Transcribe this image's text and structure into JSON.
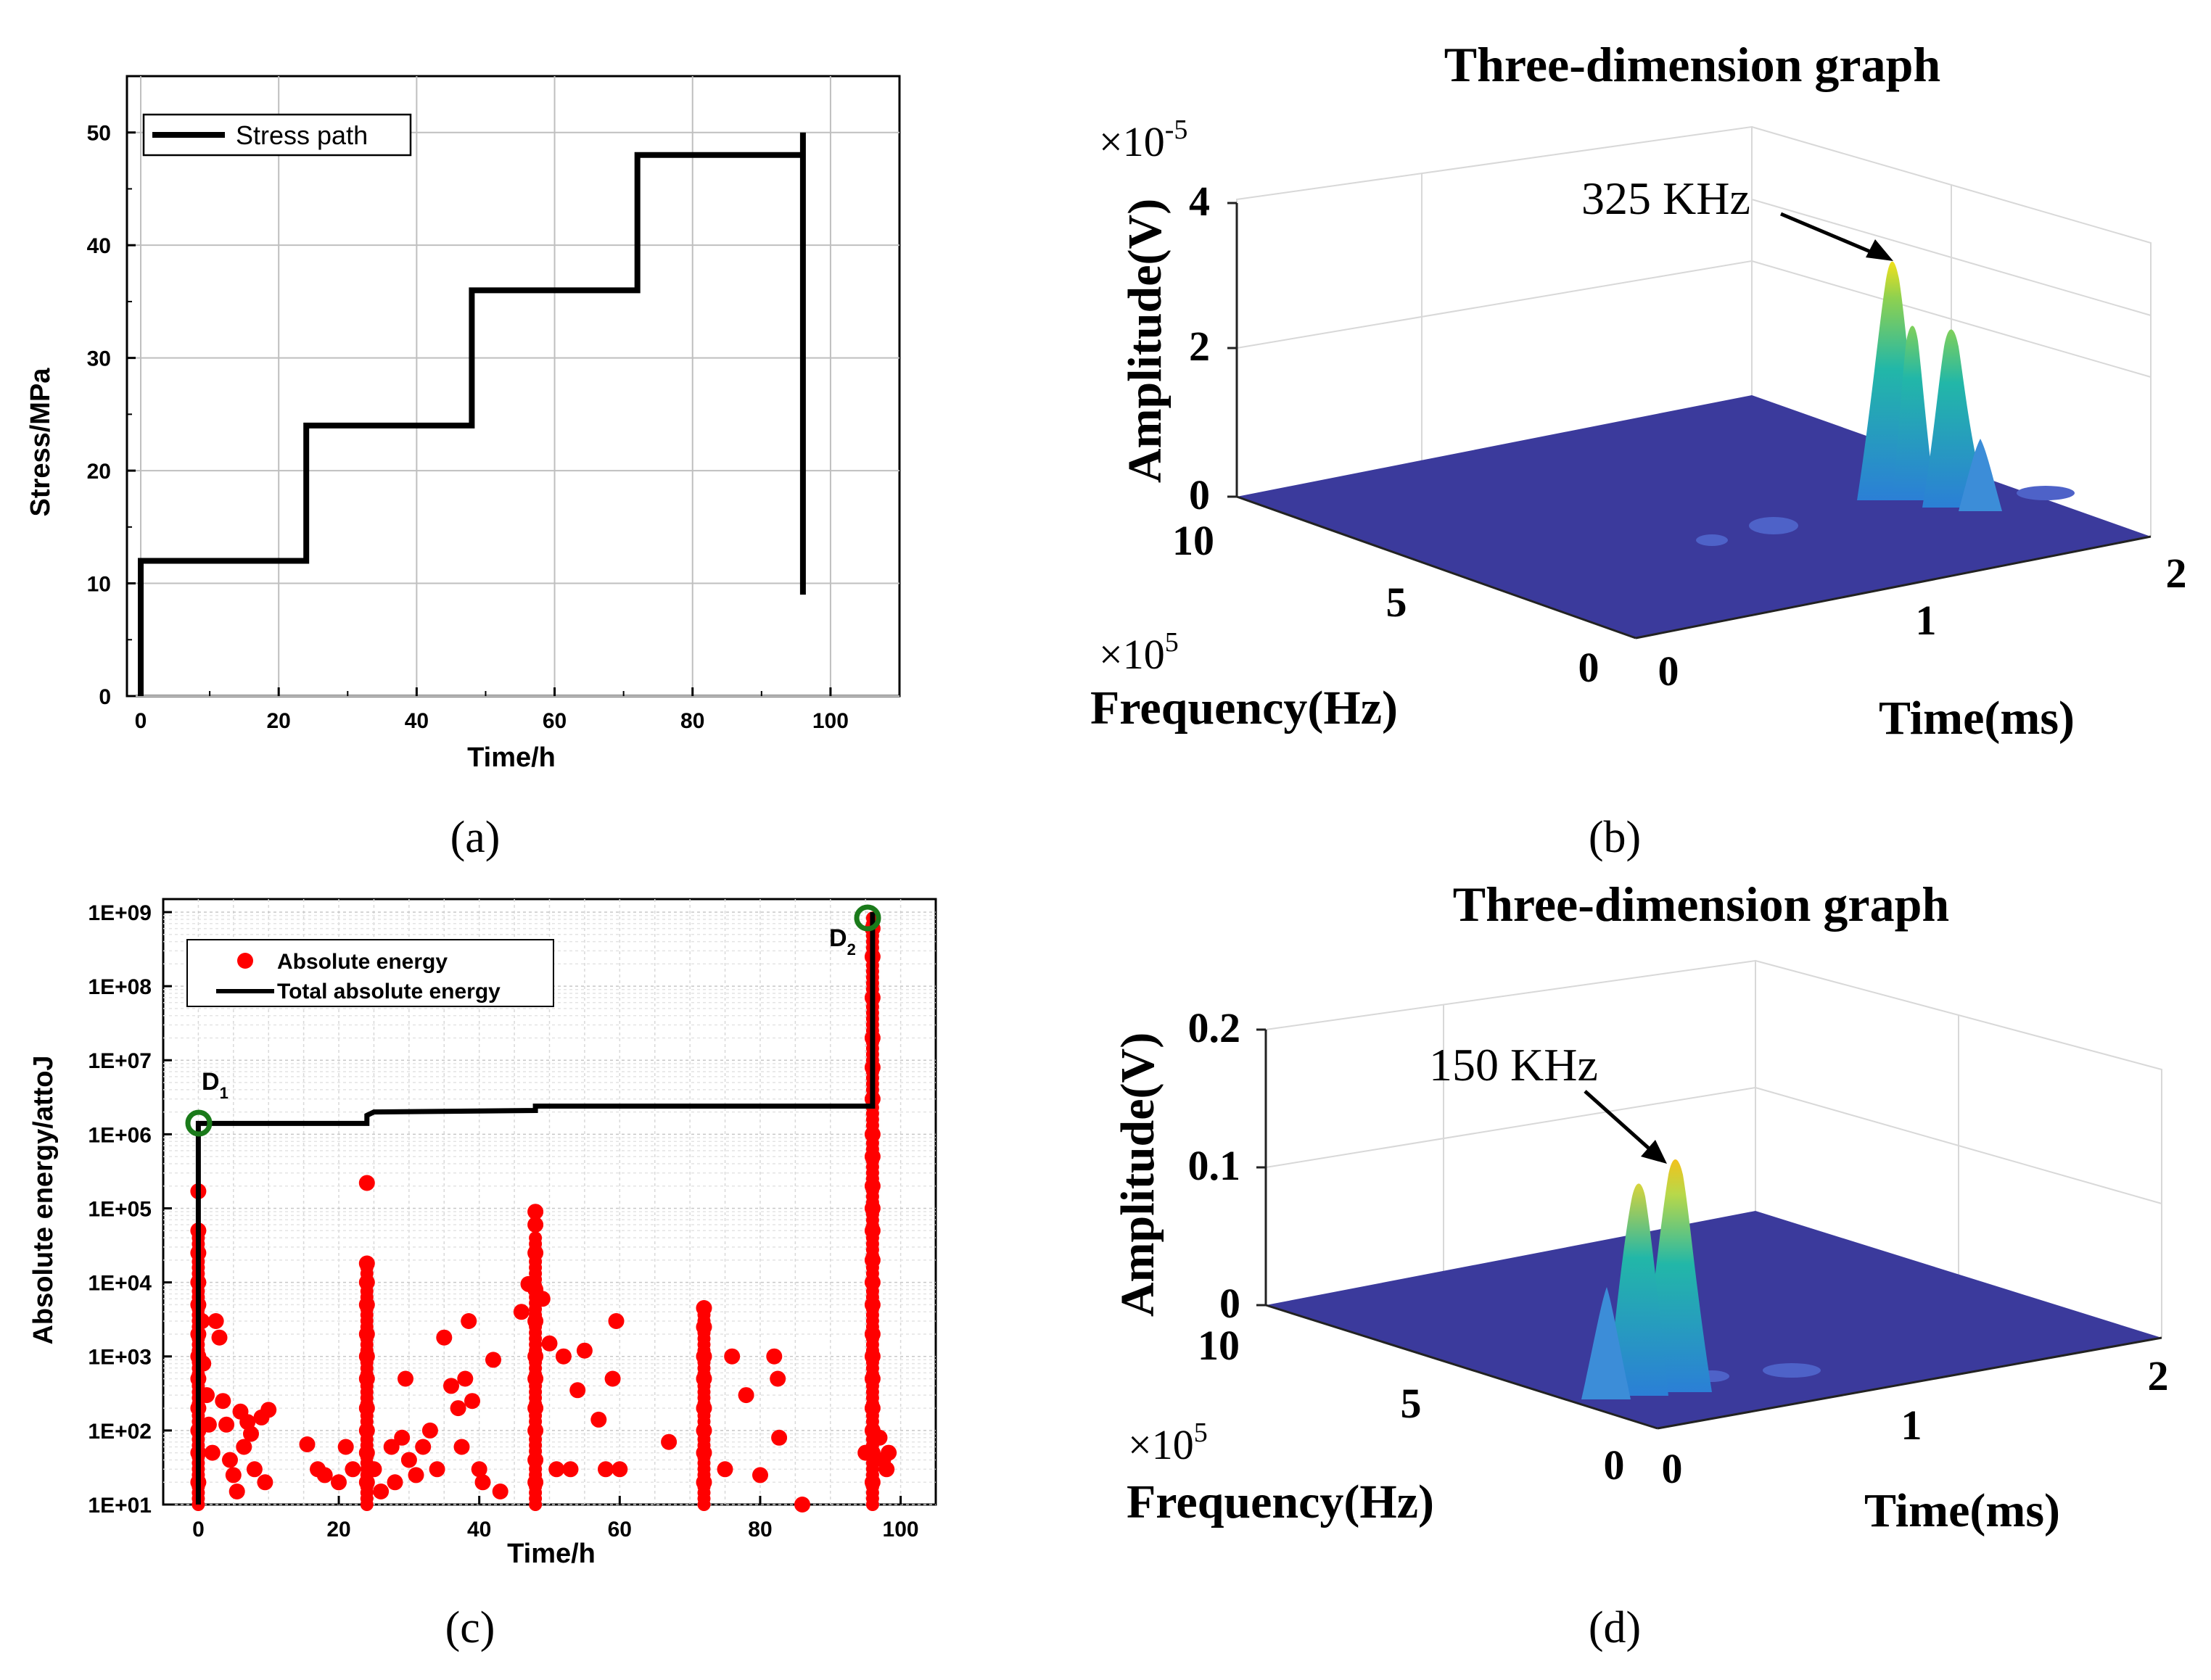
{
  "captions": {
    "a": "(a)",
    "b": "(b)",
    "c": "(c)",
    "d": "(d)"
  },
  "colors": {
    "stress_line": "#000000",
    "energy_points": "#ff0000",
    "total_energy_line": "#000000",
    "marker_circle": "#1a7a1a",
    "surface_base": "#3b3a9c",
    "peak_low": "#2b7fd6",
    "peak_mid": "#22b7a8",
    "peak_high": "#f2e01b"
  },
  "chart_data": [
    {
      "panel": "a",
      "type": "line",
      "xlabel": "Time/h",
      "ylabel": "Stress/MPa",
      "xlim": [
        -2,
        110
      ],
      "ylim": [
        0,
        55
      ],
      "xticks": [
        "0",
        "20",
        "40",
        "60",
        "80",
        "100"
      ],
      "yticks": [
        "0",
        "10",
        "20",
        "30",
        "40",
        "50"
      ],
      "grid": true,
      "legend_position": "top-left",
      "series": [
        {
          "name": "Stress path",
          "x": [
            0,
            0,
            24,
            24,
            48,
            48,
            72,
            72,
            96,
            96,
            96,
            96
          ],
          "y": [
            0,
            12,
            12,
            24,
            24,
            36,
            36,
            48,
            48,
            50,
            22,
            9
          ]
        }
      ]
    },
    {
      "panel": "b",
      "type": "surface3d",
      "title": "Three-dimension graph",
      "xlabel": "Time(ms)",
      "ylabel": "Frequency(Hz)",
      "zlabel": "Amplitude(V)",
      "xticks": [
        "0",
        "1",
        "2"
      ],
      "yticks": [
        "0",
        "5",
        "10"
      ],
      "zticks": [
        "0",
        "2",
        "4"
      ],
      "z_multiplier": "×10",
      "z_exponent": "-5",
      "y_multiplier": "×10",
      "y_exponent": "5",
      "annotation": "325 KHz",
      "peaks": [
        {
          "time_ms": 1.35,
          "freq_hz": 325000,
          "amplitude": 3.2
        },
        {
          "time_ms": 1.38,
          "freq_hz": 300000,
          "amplitude": 2.2
        },
        {
          "time_ms": 1.6,
          "freq_hz": 310000,
          "amplitude": 2.1
        }
      ]
    },
    {
      "panel": "c",
      "type": "scatter",
      "xlabel": "Time/h",
      "ylabel": "Absolute energy/attoJ",
      "xlim": [
        -5,
        105
      ],
      "yscale": "log",
      "ylim": [
        10,
        1500000000
      ],
      "xticks": [
        "0",
        "20",
        "40",
        "60",
        "80",
        "100"
      ],
      "yticks": [
        "1E+01",
        "1E+02",
        "1E+03",
        "1E+04",
        "1E+05",
        "1E+06",
        "1E+07",
        "1E+08",
        "1E+09"
      ],
      "grid": true,
      "legend_position": "top-left",
      "labels": {
        "d1": "D",
        "d1_sub": "1",
        "d2": "D",
        "d2_sub": "2"
      },
      "series": [
        {
          "name": "Absolute energy",
          "points": [
            [
              0,
              170000
            ],
            [
              0,
              50000
            ],
            [
              0,
              25000
            ],
            [
              0,
              10000
            ],
            [
              0,
              5000
            ],
            [
              0,
              2000
            ],
            [
              0,
              1000
            ],
            [
              0,
              500
            ],
            [
              0,
              200
            ],
            [
              0,
              100
            ],
            [
              0,
              50
            ],
            [
              0,
              20
            ],
            [
              0.5,
              3000
            ],
            [
              0.7,
              800
            ],
            [
              1.2,
              300
            ],
            [
              1.5,
              120
            ],
            [
              2,
              50
            ],
            [
              2.5,
              3000
            ],
            [
              3,
              1800
            ],
            [
              3.5,
              250
            ],
            [
              4,
              120
            ],
            [
              4.5,
              40
            ],
            [
              5,
              25
            ],
            [
              5.5,
              15
            ],
            [
              6,
              180
            ],
            [
              6.5,
              60
            ],
            [
              7,
              130
            ],
            [
              7.5,
              90
            ],
            [
              8,
              30
            ],
            [
              9,
              150
            ],
            [
              9.5,
              20
            ],
            [
              10,
              190
            ],
            [
              15.5,
              65
            ],
            [
              17,
              30
            ],
            [
              18,
              25
            ],
            [
              20,
              20
            ],
            [
              21,
              60
            ],
            [
              22,
              30
            ],
            [
              24,
              220000
            ],
            [
              24,
              18000
            ],
            [
              24,
              10000
            ],
            [
              24,
              5000
            ],
            [
              24,
              2000
            ],
            [
              24,
              1000
            ],
            [
              24,
              500
            ],
            [
              24,
              200
            ],
            [
              24,
              100
            ],
            [
              24,
              50
            ],
            [
              24,
              20
            ],
            [
              25,
              30
            ],
            [
              26,
              15
            ],
            [
              27.5,
              60
            ],
            [
              28,
              20
            ],
            [
              29,
              80
            ],
            [
              29.5,
              500
            ],
            [
              30,
              40
            ],
            [
              31,
              25
            ],
            [
              32,
              60
            ],
            [
              33,
              100
            ],
            [
              34,
              30
            ],
            [
              35,
              1800
            ],
            [
              36,
              400
            ],
            [
              37,
              200
            ],
            [
              37.5,
              60
            ],
            [
              38,
              500
            ],
            [
              38.5,
              3000
            ],
            [
              39,
              250
            ],
            [
              40,
              30
            ],
            [
              40.5,
              20
            ],
            [
              42,
              900
            ],
            [
              43,
              15
            ],
            [
              46,
              4000
            ],
            [
              47,
              9500
            ],
            [
              48,
              90000
            ],
            [
              48,
              60000
            ],
            [
              48,
              25000
            ],
            [
              48,
              8000
            ],
            [
              48,
              3000
            ],
            [
              48,
              1000
            ],
            [
              48,
              500
            ],
            [
              48,
              200
            ],
            [
              48,
              100
            ],
            [
              48,
              40
            ],
            [
              48,
              20
            ],
            [
              49,
              6000
            ],
            [
              50,
              1500
            ],
            [
              51,
              30
            ],
            [
              52,
              1000
            ],
            [
              53,
              30
            ],
            [
              54,
              350
            ],
            [
              55,
              1200
            ],
            [
              57,
              140
            ],
            [
              58,
              30
            ],
            [
              59,
              500
            ],
            [
              59.5,
              3000
            ],
            [
              60,
              30
            ],
            [
              67,
              70
            ],
            [
              72,
              4500
            ],
            [
              72,
              2500
            ],
            [
              72,
              1000
            ],
            [
              72,
              500
            ],
            [
              72,
              200
            ],
            [
              72,
              100
            ],
            [
              72,
              50
            ],
            [
              72,
              20
            ],
            [
              75,
              30
            ],
            [
              76,
              1000
            ],
            [
              78,
              300
            ],
            [
              80,
              25
            ],
            [
              82,
              1000
            ],
            [
              82.5,
              500
            ],
            [
              82.7,
              80
            ],
            [
              86,
              10
            ],
            [
              95,
              50
            ],
            [
              96,
              600000000
            ],
            [
              96,
              250000000
            ],
            [
              96,
              70000000
            ],
            [
              96,
              20000000
            ],
            [
              96,
              8000000
            ],
            [
              96,
              3000000
            ],
            [
              96,
              1000000
            ],
            [
              96,
              500000
            ],
            [
              96,
              200000
            ],
            [
              96,
              100000
            ],
            [
              96,
              50000
            ],
            [
              96,
              20000
            ],
            [
              96,
              10000
            ],
            [
              96,
              5000
            ],
            [
              96,
              2000
            ],
            [
              96,
              1000
            ],
            [
              96,
              500
            ],
            [
              96,
              200
            ],
            [
              96,
              100
            ],
            [
              96,
              50
            ],
            [
              96,
              20
            ],
            [
              97,
              80
            ],
            [
              97.5,
              40
            ],
            [
              98,
              30
            ],
            [
              98.3,
              50
            ]
          ]
        },
        {
          "name": "Total absolute energy",
          "x": [
            0,
            0,
            24,
            24,
            25,
            48,
            48,
            96,
            96
          ],
          "y": [
            10,
            1400000,
            1400000,
            1800000,
            2000000,
            2100000,
            2400000,
            2400000,
            1000000000
          ]
        }
      ]
    },
    {
      "panel": "d",
      "type": "surface3d",
      "title": "Three-dimension graph",
      "xlabel": "Time(ms)",
      "ylabel": "Frequency(Hz)",
      "zlabel": "Amplitude(V)",
      "xticks": [
        "0",
        "1",
        "2"
      ],
      "yticks": [
        "0",
        "5",
        "10"
      ],
      "zticks": [
        "0",
        "0.1",
        "0.2"
      ],
      "y_multiplier": "×10",
      "y_exponent": "5",
      "annotation": "150 KHz",
      "peaks": [
        {
          "time_ms": 0.9,
          "freq_hz": 150000,
          "amplitude": 0.1
        },
        {
          "time_ms": 0.75,
          "freq_hz": 170000,
          "amplitude": 0.085
        },
        {
          "time_ms": 0.6,
          "freq_hz": 200000,
          "amplitude": 0.04
        }
      ]
    }
  ]
}
